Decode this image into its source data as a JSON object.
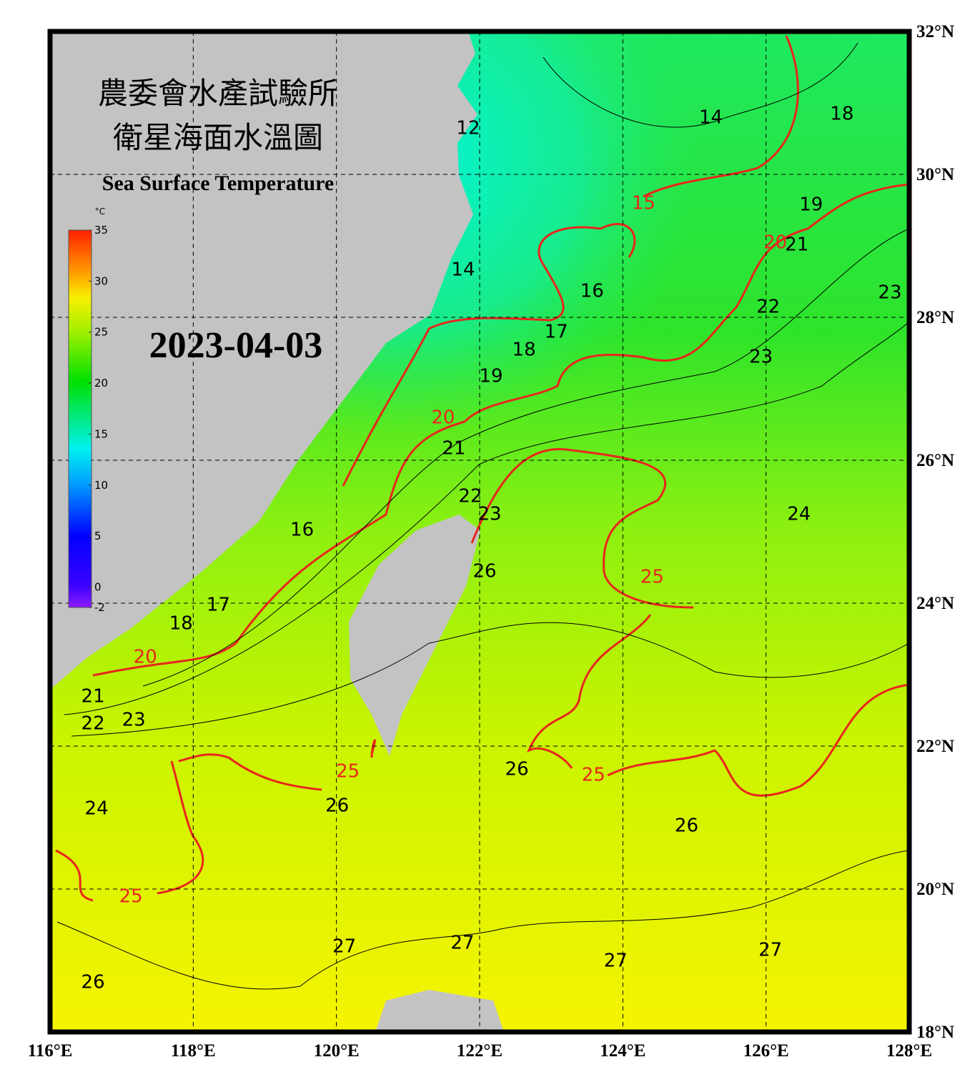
{
  "map": {
    "title_lines": [
      "農委會水產試驗所",
      "衛星海面水溫圖"
    ],
    "subtitle": "Sea Surface Temperature",
    "date": "2023-04-03",
    "xlim": [
      116,
      128
    ],
    "ylim": [
      18,
      32
    ],
    "xticks": [
      {
        "value": 116,
        "label": "116°E"
      },
      {
        "value": 118,
        "label": "118°E"
      },
      {
        "value": 120,
        "label": "120°E"
      },
      {
        "value": 122,
        "label": "122°E"
      },
      {
        "value": 124,
        "label": "124°E"
      },
      {
        "value": 126,
        "label": "126°E"
      },
      {
        "value": 128,
        "label": "128°E"
      }
    ],
    "yticks": [
      {
        "value": 18,
        "label": "18°N"
      },
      {
        "value": 20,
        "label": "20°N"
      },
      {
        "value": 22,
        "label": "22°N"
      },
      {
        "value": 24,
        "label": "24°N"
      },
      {
        "value": 26,
        "label": "26°N"
      },
      {
        "value": 28,
        "label": "28°N"
      },
      {
        "value": 30,
        "label": "30°N"
      },
      {
        "value": 32,
        "label": "32°N"
      }
    ],
    "grid": true,
    "colorbar": {
      "unit": "°C",
      "clim": [
        -2,
        35
      ],
      "ticks": [
        35,
        30,
        25,
        20,
        15,
        10,
        5,
        0,
        -2
      ]
    },
    "major_interval": 5,
    "major_color": "#e8261c",
    "minor_color": "#000000",
    "contour_labels": [
      {
        "value": 12,
        "lon": 121.84,
        "lat": 30.64
      },
      {
        "value": 14,
        "lon": 125.23,
        "lat": 30.79
      },
      {
        "value": 18,
        "lon": 127.06,
        "lat": 30.84
      },
      {
        "value": 15,
        "lon": 124.29,
        "lat": 29.59
      },
      {
        "value": 19,
        "lon": 126.63,
        "lat": 29.57
      },
      {
        "value": 20,
        "lon": 126.13,
        "lat": 29.04
      },
      {
        "value": 21,
        "lon": 126.43,
        "lat": 29.01
      },
      {
        "value": 16,
        "lon": 123.57,
        "lat": 28.36
      },
      {
        "value": 23,
        "lon": 127.73,
        "lat": 28.34
      },
      {
        "value": 22,
        "lon": 126.03,
        "lat": 28.14
      },
      {
        "value": 14,
        "lon": 121.77,
        "lat": 28.66
      },
      {
        "value": 17,
        "lon": 123.07,
        "lat": 27.79
      },
      {
        "value": 18,
        "lon": 122.62,
        "lat": 27.54
      },
      {
        "value": 23,
        "lon": 125.93,
        "lat": 27.44
      },
      {
        "value": 19,
        "lon": 122.16,
        "lat": 27.17
      },
      {
        "value": 20,
        "lon": 121.49,
        "lat": 26.59
      },
      {
        "value": 21,
        "lon": 121.64,
        "lat": 26.16
      },
      {
        "value": 22,
        "lon": 121.87,
        "lat": 25.49
      },
      {
        "value": 23,
        "lon": 122.14,
        "lat": 25.24
      },
      {
        "value": 24,
        "lon": 126.46,
        "lat": 25.24
      },
      {
        "value": 16,
        "lon": 119.52,
        "lat": 25.02
      },
      {
        "value": 26,
        "lon": 122.07,
        "lat": 24.44
      },
      {
        "value": 25,
        "lon": 124.41,
        "lat": 24.36
      },
      {
        "value": 17,
        "lon": 118.35,
        "lat": 23.97
      },
      {
        "value": 18,
        "lon": 117.83,
        "lat": 23.71
      },
      {
        "value": 20,
        "lon": 117.33,
        "lat": 23.24
      },
      {
        "value": 21,
        "lon": 116.6,
        "lat": 22.69
      },
      {
        "value": 22,
        "lon": 116.6,
        "lat": 22.31
      },
      {
        "value": 23,
        "lon": 117.17,
        "lat": 22.36
      },
      {
        "value": 25,
        "lon": 120.16,
        "lat": 21.64
      },
      {
        "value": 26,
        "lon": 122.52,
        "lat": 21.67
      },
      {
        "value": 25,
        "lon": 123.59,
        "lat": 21.59
      },
      {
        "value": 26,
        "lon": 120.01,
        "lat": 21.16
      },
      {
        "value": 24,
        "lon": 116.65,
        "lat": 21.12
      },
      {
        "value": 26,
        "lon": 124.89,
        "lat": 20.88
      },
      {
        "value": 25,
        "lon": 117.13,
        "lat": 19.89
      },
      {
        "value": 27,
        "lon": 120.11,
        "lat": 19.19
      },
      {
        "value": 27,
        "lon": 121.76,
        "lat": 19.24
      },
      {
        "value": 27,
        "lon": 123.9,
        "lat": 18.99
      },
      {
        "value": 27,
        "lon": 126.06,
        "lat": 19.14
      },
      {
        "value": 26,
        "lon": 116.6,
        "lat": 18.69
      }
    ]
  }
}
